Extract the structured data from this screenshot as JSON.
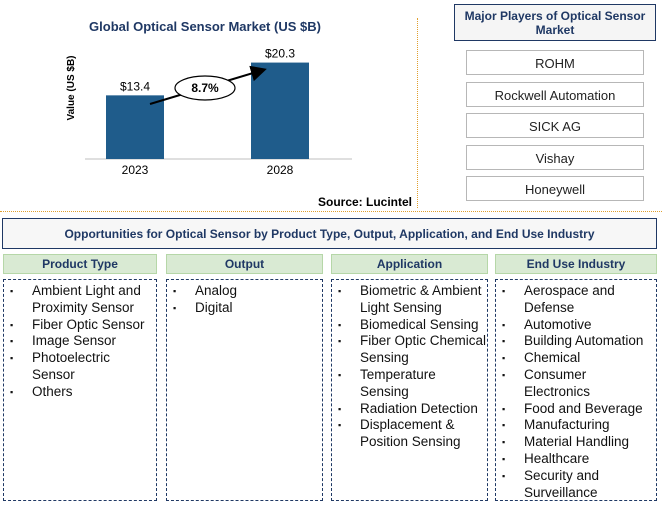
{
  "chart_data": {
    "type": "bar",
    "title": "Global Optical Sensor Market (US $B)",
    "ylabel": "Value (US $B)",
    "xlabel": "",
    "categories": [
      "2023",
      "2028"
    ],
    "values": [
      13.4,
      20.3
    ],
    "value_labels": [
      "$13.4",
      "$20.3"
    ],
    "ylim": [
      0,
      24
    ],
    "bar_color": "#1f5c8b",
    "cagr_label": "8.7%",
    "grid": false
  },
  "source": "Source: Lucintel",
  "players": {
    "title": "Major Players of Optical Sensor Market",
    "items": [
      "ROHM",
      "Rockwell Automation",
      "SICK AG",
      "Vishay",
      "Honeywell"
    ]
  },
  "opportunities": {
    "title": "Opportunities for Optical Sensor by Product Type, Output, Application, and End Use Industry",
    "columns": [
      {
        "heading": "Product Type",
        "items": [
          "Ambient Light and Proximity Sensor",
          "Fiber Optic Sensor",
          "Image Sensor",
          "Photoelectric Sensor",
          "Others"
        ]
      },
      {
        "heading": "Output",
        "items": [
          "Analog",
          "Digital"
        ]
      },
      {
        "heading": "Application",
        "items": [
          "Biometric & Ambient Light Sensing",
          "Biomedical Sensing",
          "Fiber Optic Chemical Sensing",
          "Temperature Sensing",
          "Radiation Detection",
          "Displacement & Position Sensing"
        ]
      },
      {
        "heading": "End Use Industry",
        "items": [
          "Aerospace and Defense",
          "Automotive",
          "Building Automation",
          "Chemical",
          "Consumer Electronics",
          "Food and Beverage",
          "Manufacturing",
          "Material Handling",
          "Healthcare",
          "Security and Surveillance"
        ]
      }
    ]
  }
}
